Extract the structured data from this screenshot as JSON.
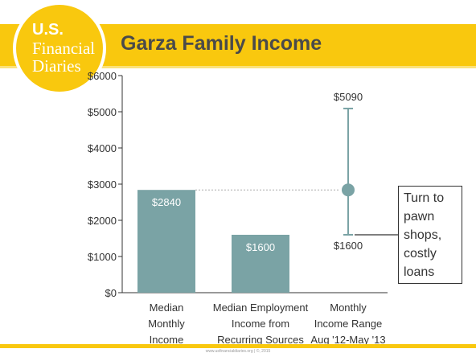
{
  "header": {
    "title": "Garza Family Income",
    "logo": {
      "line1": "U.S.",
      "line2": "Financial",
      "line3": "Diaries"
    }
  },
  "footer": {
    "text": "www.usfinancialdiaries.org | ©, 2015"
  },
  "callout": {
    "text": "Turn to pawn shops, costly loans"
  },
  "colors": {
    "bar": "#7aa3a5",
    "accent_yellow": "#f9c80e",
    "axis": "#333333",
    "grid_tick_text": "#333333",
    "dotted_reference": "#aaaaaa",
    "range_line": "#7aa3a5"
  },
  "chart_data": {
    "type": "bar",
    "title": "Garza Family Income",
    "categories": [
      [
        "Median",
        "Monthly",
        "Income"
      ],
      [
        "Median Employment",
        "Income from",
        "Recurring Sources"
      ],
      [
        "Monthly",
        "Income Range",
        "Aug '12-May '13"
      ]
    ],
    "bars": [
      {
        "category_index": 0,
        "value": 2840,
        "label": "$2840"
      },
      {
        "category_index": 1,
        "value": 1600,
        "label": "$1600"
      }
    ],
    "range": {
      "category_index": 2,
      "min": 1600,
      "max": 5090,
      "median": 2840,
      "min_label": "$1600",
      "max_label": "$5090"
    },
    "y_ticks": [
      {
        "value": 0,
        "label": "$0"
      },
      {
        "value": 1000,
        "label": "$1000"
      },
      {
        "value": 2000,
        "label": "$2000"
      },
      {
        "value": 3000,
        "label": "$3000"
      },
      {
        "value": 4000,
        "label": "$4000"
      },
      {
        "value": 5000,
        "label": "$5000"
      },
      {
        "value": 6000,
        "label": "$6000"
      }
    ],
    "ylim": [
      0,
      6000
    ],
    "grid": false,
    "reference_line": {
      "value": 2840,
      "style": "dotted"
    }
  }
}
